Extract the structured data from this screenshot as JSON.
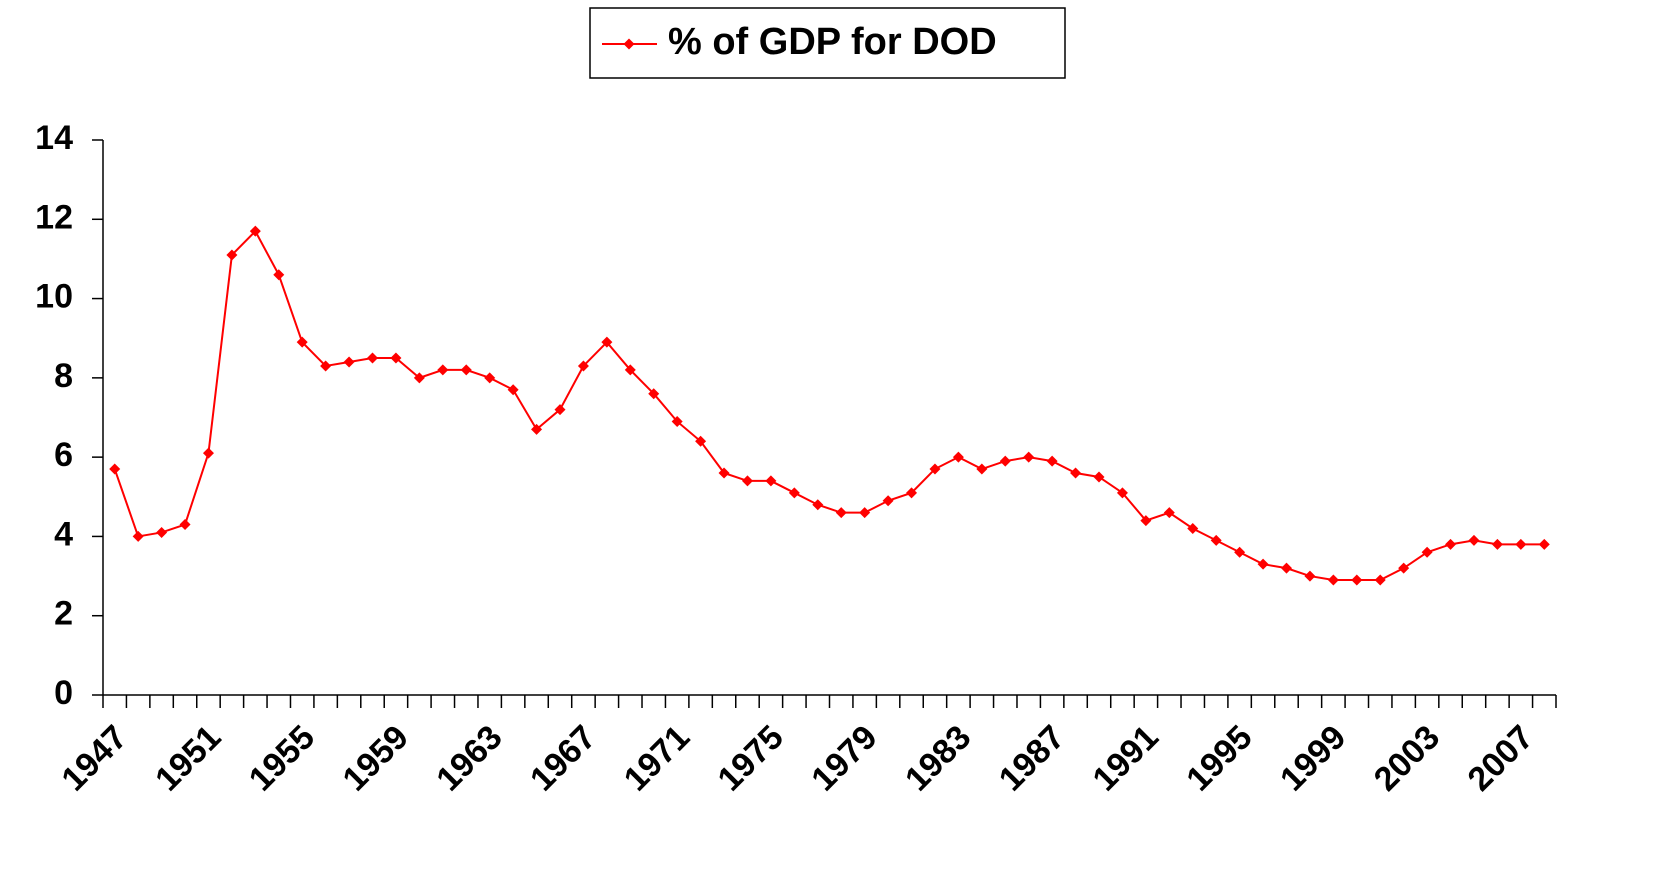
{
  "chart_data": {
    "type": "line",
    "categories": [
      "1947",
      null,
      null,
      null,
      "1951",
      null,
      null,
      null,
      "1955",
      null,
      null,
      null,
      "1959",
      null,
      null,
      null,
      "1963",
      null,
      null,
      null,
      "1967",
      null,
      null,
      null,
      "1971",
      null,
      null,
      null,
      "1975",
      null,
      null,
      null,
      "1979",
      null,
      null,
      null,
      "1983",
      null,
      null,
      null,
      "1987",
      null,
      null,
      null,
      "1991",
      null,
      null,
      null,
      "1995",
      null,
      null,
      null,
      "1999",
      null,
      null,
      null,
      "2003",
      null,
      null,
      null,
      "2007",
      null
    ],
    "series": [
      {
        "name": "% of GDP for DOD",
        "color": "#ff0000",
        "values": [
          5.7,
          4.0,
          4.1,
          4.3,
          6.1,
          11.1,
          11.7,
          10.6,
          8.9,
          8.3,
          8.4,
          8.5,
          8.5,
          8.0,
          8.2,
          8.2,
          8.0,
          7.7,
          6.7,
          7.2,
          8.3,
          8.9,
          8.2,
          7.6,
          6.9,
          6.4,
          5.6,
          5.4,
          5.4,
          5.1,
          4.8,
          4.6,
          4.6,
          4.9,
          5.1,
          5.7,
          6.0,
          5.7,
          5.9,
          6.0,
          5.9,
          5.6,
          5.5,
          5.1,
          4.4,
          4.6,
          4.2,
          3.9,
          3.6,
          3.3,
          3.2,
          3.0,
          2.9,
          2.9,
          2.9,
          3.2,
          3.6,
          3.8,
          3.9,
          3.8,
          3.8,
          3.8
        ]
      }
    ],
    "ylim": [
      0,
      14
    ],
    "yticks": [
      0,
      2,
      4,
      6,
      8,
      10,
      12,
      14
    ],
    "legend": "top"
  }
}
